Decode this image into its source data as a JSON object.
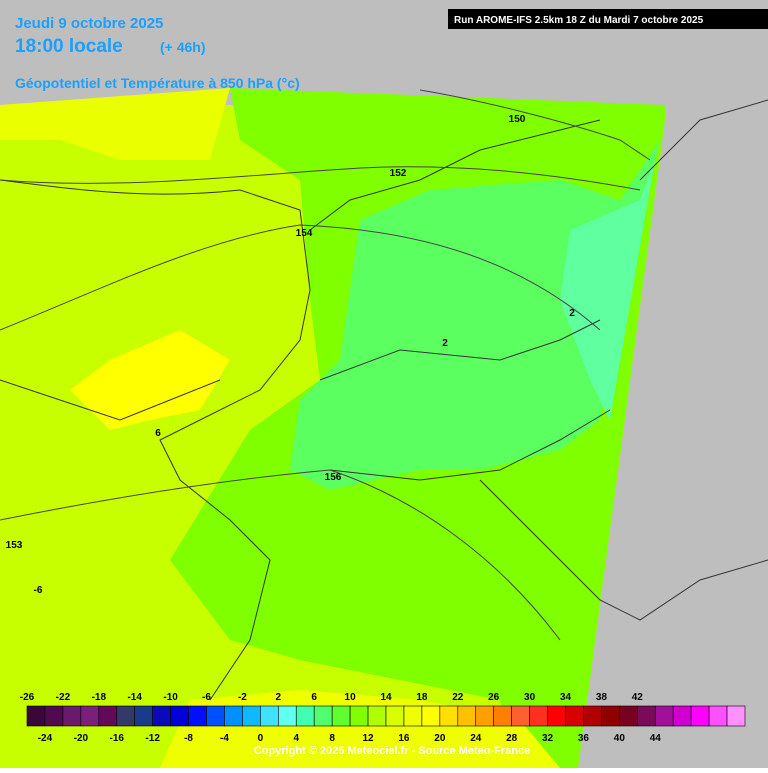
{
  "header": {
    "date": "Jeudi 9 octobre 2025",
    "time": "18:00 locale",
    "lead": "(+ 46h)",
    "field": "Géopotentiel et Température à 850 hPa (°c)",
    "run": "Run AROME-IFS 2.5km 18 Z du Mardi 7 octobre 2025"
  },
  "map": {
    "contour_labels": [
      "150",
      "152",
      "154",
      "156",
      "153",
      "6",
      "2",
      "2",
      "-6"
    ]
  },
  "legend": {
    "top_ticks": [
      -26,
      -22,
      -18,
      -14,
      -10,
      -6,
      -2,
      2,
      6,
      10,
      14,
      18,
      22,
      26,
      30,
      34,
      38,
      42
    ],
    "bottom_ticks": [
      -24,
      -20,
      -16,
      -12,
      -8,
      -4,
      0,
      4,
      8,
      12,
      16,
      20,
      24,
      28,
      32,
      36,
      40,
      44
    ],
    "colors": [
      "#3a0838",
      "#500a50",
      "#6a1a6a",
      "#7a207a",
      "#600a58",
      "#343a68",
      "#1a3a8a",
      "#0a0ab8",
      "#0000d8",
      "#0010ff",
      "#0050ff",
      "#0090ff",
      "#10b8ff",
      "#40e0ff",
      "#60fff0",
      "#40ffb0",
      "#50ff70",
      "#60ff30",
      "#80ff00",
      "#b0ff00",
      "#d8ff00",
      "#f0ff00",
      "#ffff00",
      "#ffe000",
      "#ffc000",
      "#ffa000",
      "#ff8000",
      "#ff6030",
      "#ff3020",
      "#ff0000",
      "#d80000",
      "#b00000",
      "#900000",
      "#780020",
      "#7a0a5a",
      "#a0109a",
      "#d000d0",
      "#ff00ff",
      "#ff50ff",
      "#ff90ff"
    ]
  },
  "footer": {
    "copyright": "Copyright © 2025 Meteociel.fr - Source Meteo-France"
  }
}
